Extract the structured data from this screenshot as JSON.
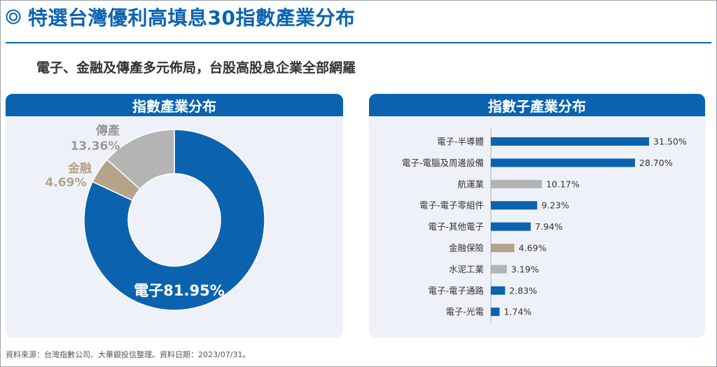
{
  "header": {
    "title": "特選台灣優利高填息30指數產業分布",
    "subtitle": "電子、金融及傳產多元佈局，台股高股息企業全部網羅"
  },
  "colors": {
    "blue": "#0b63b0",
    "gray": "#b4b4b4",
    "tan": "#b5a48c"
  },
  "chart_data": [
    {
      "type": "pie",
      "title": "指數產業分布",
      "slices": [
        {
          "label": "電子",
          "value": 81.95,
          "value_text": "81.95%",
          "color": "#0b63b0"
        },
        {
          "label": "金融",
          "value": 4.69,
          "value_text": "4.69%",
          "color": "#b5a48c"
        },
        {
          "label": "傳產",
          "value": 13.36,
          "value_text": "13.36%",
          "color": "#b4b4b4"
        }
      ]
    },
    {
      "type": "bar",
      "title": "指數子產業分布",
      "orientation": "horizontal",
      "categories": [
        "電子-半導體",
        "電子-電腦及周邊設備",
        "航運業",
        "電子-電子零組件",
        "電子-其他電子",
        "金融保險",
        "水泥工業",
        "電子-電子通路",
        "電子-光電"
      ],
      "values": [
        31.5,
        28.7,
        10.17,
        9.23,
        7.94,
        4.69,
        3.19,
        2.83,
        1.74
      ],
      "value_labels": [
        "31.50%",
        "28.70%",
        "10.17%",
        "9.23%",
        "7.94%",
        "4.69%",
        "3.19%",
        "2.83%",
        "1.74%"
      ],
      "colors": [
        "#0b63b0",
        "#0b63b0",
        "#b4b4b4",
        "#0b63b0",
        "#0b63b0",
        "#b5a48c",
        "#b4b4b4",
        "#0b63b0",
        "#0b63b0"
      ]
    }
  ],
  "footer": {
    "source": "資料來源：台灣指數公司、大華銀投信整理。資料日期：2023/07/31。"
  }
}
